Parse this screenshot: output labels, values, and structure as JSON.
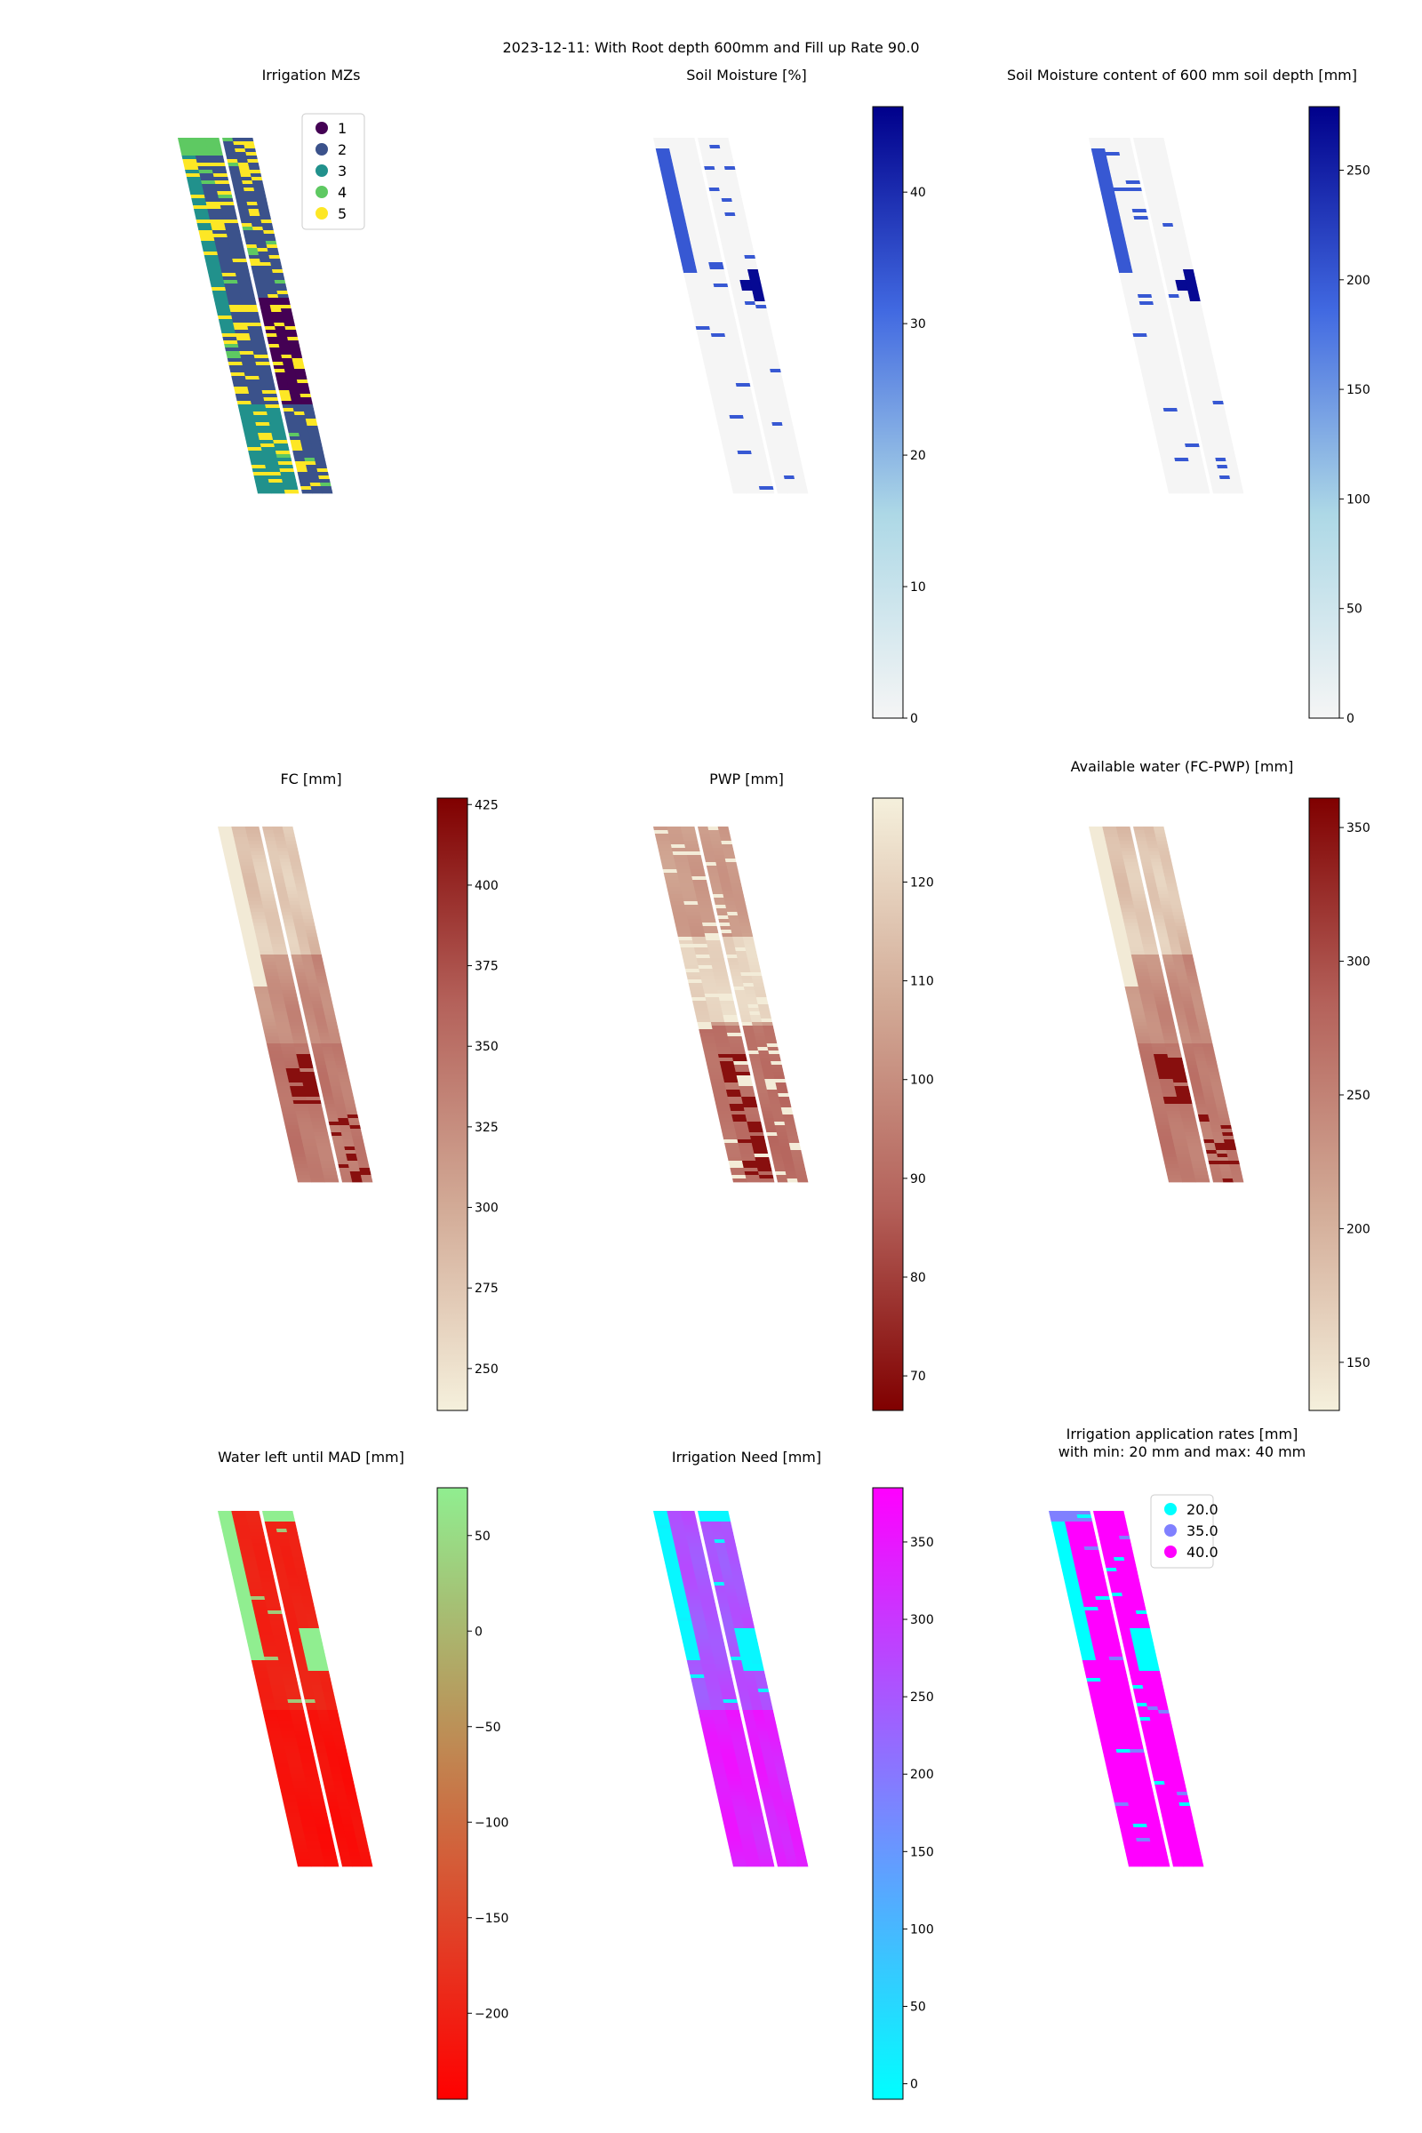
{
  "figure_title": "2023-12-11: With Root depth 600mm and Fill up Rate 90.0",
  "chart_data": [
    {
      "type": "heatmap",
      "panel": "mz",
      "title": "Irrigation MZs",
      "xlabel": "",
      "ylabel": "",
      "axes_visible": false,
      "legend": {
        "placement": "top-right",
        "entries": [
          "1",
          "2",
          "3",
          "4",
          "5"
        ],
        "colors": [
          "#440154",
          "#3b528b",
          "#21918c",
          "#5ec962",
          "#fde725"
        ]
      },
      "grid": false
    },
    {
      "type": "heatmap",
      "panel": "sm",
      "title": "Soil Moisture [%]",
      "xlabel": "",
      "ylabel": "",
      "axes_visible": false,
      "colorbar": {
        "min": 0,
        "max": 46.5,
        "ticks": [
          0,
          10,
          20,
          30,
          40
        ],
        "colormap": [
          "#f5f5f5",
          "#add8e6",
          "#4169e1",
          "#00008b"
        ]
      },
      "grid": false
    },
    {
      "type": "heatmap",
      "panel": "smc",
      "title": "Soil Moisture content of 600 mm soil depth [mm]",
      "xlabel": "",
      "ylabel": "",
      "axes_visible": false,
      "colorbar": {
        "min": 0,
        "max": 279,
        "ticks": [
          0,
          50,
          100,
          150,
          200,
          250
        ],
        "colormap": [
          "#f5f5f5",
          "#add8e6",
          "#4169e1",
          "#00008b"
        ]
      },
      "grid": false
    },
    {
      "type": "heatmap",
      "panel": "fc",
      "title": "FC [mm]",
      "xlabel": "",
      "ylabel": "",
      "axes_visible": false,
      "colorbar": {
        "min": 237,
        "max": 427,
        "ticks": [
          250,
          275,
          300,
          325,
          350,
          375,
          400,
          425
        ],
        "colormap": [
          "#f5f0dc",
          "#d2aa96",
          "#b4615a",
          "#800000"
        ]
      },
      "grid": false
    },
    {
      "type": "heatmap",
      "panel": "pwp",
      "title": "PWP [mm]",
      "xlabel": "",
      "ylabel": "",
      "axes_visible": false,
      "colorbar": {
        "min": 66.5,
        "max": 128.5,
        "ticks": [
          70,
          80,
          90,
          100,
          110,
          120
        ],
        "colormap": [
          "#800000",
          "#b4615a",
          "#d2aa96",
          "#f5f0dc"
        ]
      },
      "grid": false
    },
    {
      "type": "heatmap",
      "panel": "aw",
      "title": "Available water (FC-PWP) [mm]",
      "xlabel": "",
      "ylabel": "",
      "axes_visible": false,
      "colorbar": {
        "min": 132,
        "max": 361,
        "ticks": [
          150,
          200,
          250,
          300,
          350
        ],
        "colormap": [
          "#f5f0dc",
          "#d2aa96",
          "#b4615a",
          "#800000"
        ]
      },
      "grid": false
    },
    {
      "type": "heatmap",
      "panel": "wl",
      "title": "Water left until MAD [mm]",
      "xlabel": "",
      "ylabel": "",
      "axes_visible": false,
      "colorbar": {
        "min": -245,
        "max": 75,
        "ticks": [
          -200,
          -150,
          -100,
          -50,
          0,
          50
        ],
        "tick_labels": [
          "−200",
          "−150",
          "−100",
          "−50",
          "0",
          "50"
        ],
        "colormap": [
          "#ff0000",
          "#90ee90"
        ]
      },
      "grid": false
    },
    {
      "type": "heatmap",
      "panel": "in",
      "title": "Irrigation Need [mm]",
      "xlabel": "",
      "ylabel": "",
      "axes_visible": false,
      "colorbar": {
        "min": -10,
        "max": 385,
        "ticks": [
          0,
          50,
          100,
          150,
          200,
          250,
          300,
          350
        ],
        "colormap": [
          "#00ffff",
          "#ff00ff"
        ]
      },
      "grid": false
    },
    {
      "type": "heatmap",
      "panel": "ir",
      "title": "Irrigation application rates [mm]",
      "subtitle": "with min: 20 mm and max: 40 mm",
      "xlabel": "",
      "ylabel": "",
      "axes_visible": false,
      "legend": {
        "placement": "top-center",
        "entries": [
          "20.0",
          "35.0",
          "40.0"
        ],
        "colors": [
          "#00ffff",
          "#8080ff",
          "#ff00ff"
        ]
      },
      "grid": false
    }
  ]
}
